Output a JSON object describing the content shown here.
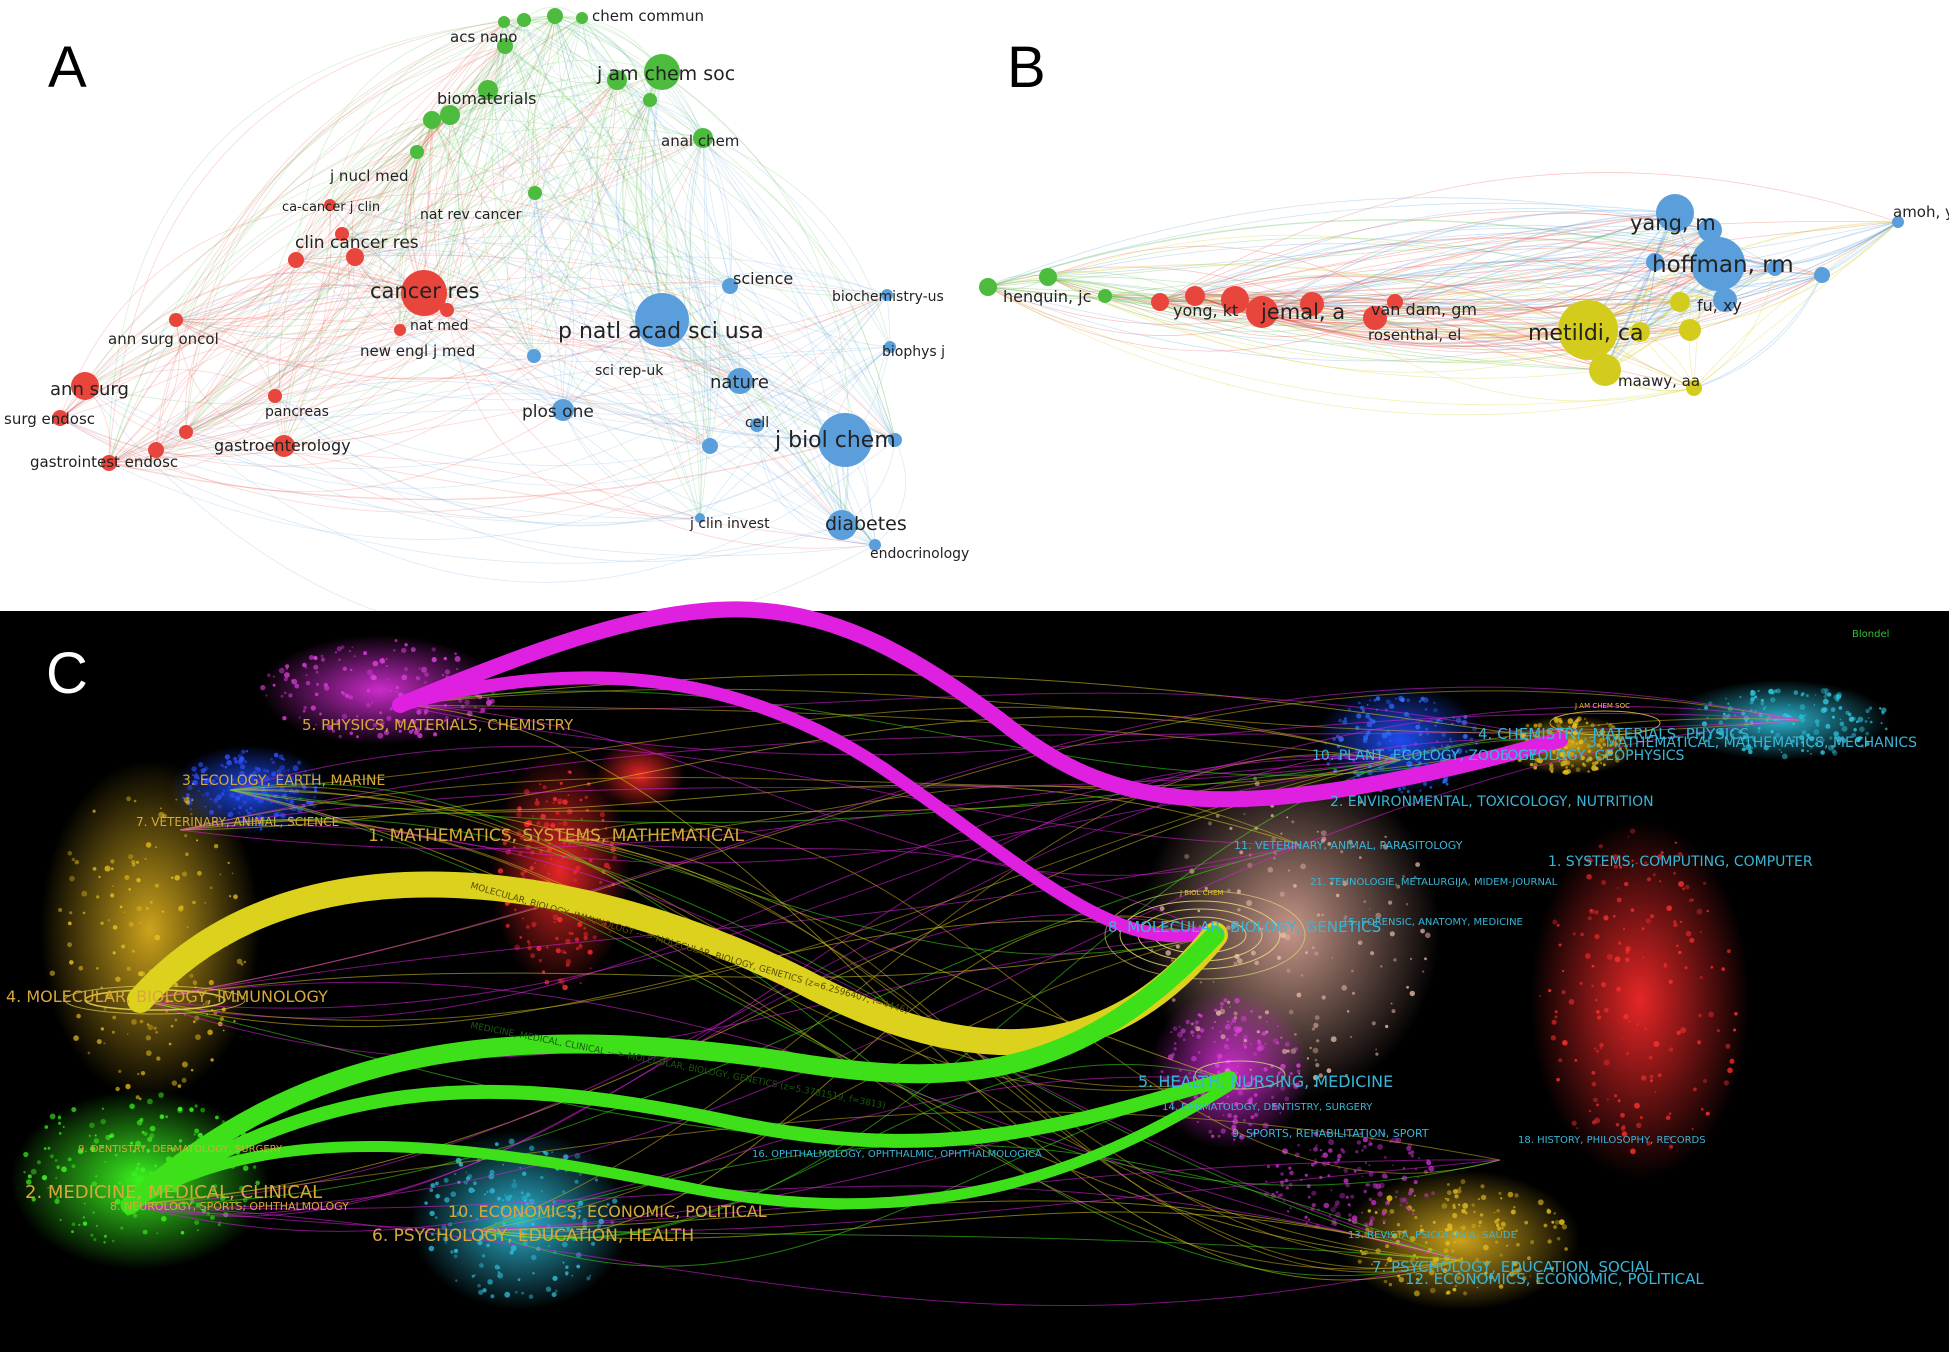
{
  "panels": {
    "A": {
      "letter": "A",
      "colors": {
        "red": "#e8453c",
        "green": "#4cbb3e",
        "blue": "#5a9fdc"
      },
      "nodes": [
        {
          "label": "chem commun",
          "cluster": "green",
          "weight": 1
        },
        {
          "label": "acs nano",
          "cluster": "green",
          "weight": 1
        },
        {
          "label": "j am chem soc",
          "cluster": "green",
          "weight": 3
        },
        {
          "label": "biomaterials",
          "cluster": "green",
          "weight": 2
        },
        {
          "label": "anal chem",
          "cluster": "green",
          "weight": 1
        },
        {
          "label": "j nucl med",
          "cluster": "green",
          "weight": 1
        },
        {
          "label": "ca-cancer j clin",
          "cluster": "red",
          "weight": 1
        },
        {
          "label": "nat rev cancer",
          "cluster": "green",
          "weight": 1
        },
        {
          "label": "clin cancer res",
          "cluster": "red",
          "weight": 2
        },
        {
          "label": "cancer res",
          "cluster": "red",
          "weight": 4
        },
        {
          "label": "nat med",
          "cluster": "red",
          "weight": 1
        },
        {
          "label": "new engl j med",
          "cluster": "red",
          "weight": 1
        },
        {
          "label": "ann surg oncol",
          "cluster": "red",
          "weight": 1
        },
        {
          "label": "ann surg",
          "cluster": "red",
          "weight": 3
        },
        {
          "label": "surg endosc",
          "cluster": "red",
          "weight": 1
        },
        {
          "label": "pancreas",
          "cluster": "red",
          "weight": 1
        },
        {
          "label": "gastroenterology",
          "cluster": "red",
          "weight": 2
        },
        {
          "label": "gastrointest endosc",
          "cluster": "red",
          "weight": 2
        },
        {
          "label": "science",
          "cluster": "blue",
          "weight": 2
        },
        {
          "label": "biochemistry-us",
          "cluster": "blue",
          "weight": 1
        },
        {
          "label": "p natl acad sci usa",
          "cluster": "blue",
          "weight": 4
        },
        {
          "label": "biophys j",
          "cluster": "blue",
          "weight": 1
        },
        {
          "label": "sci rep-uk",
          "cluster": "blue",
          "weight": 1
        },
        {
          "label": "nature",
          "cluster": "blue",
          "weight": 2
        },
        {
          "label": "plos one",
          "cluster": "blue",
          "weight": 2
        },
        {
          "label": "cell",
          "cluster": "blue",
          "weight": 1
        },
        {
          "label": "j biol chem",
          "cluster": "blue",
          "weight": 4
        },
        {
          "label": "diabetes",
          "cluster": "blue",
          "weight": 3
        },
        {
          "label": "j clin invest",
          "cluster": "blue",
          "weight": 1
        },
        {
          "label": "endocrinology",
          "cluster": "blue",
          "weight": 1
        }
      ]
    },
    "B": {
      "letter": "B",
      "colors": {
        "red": "#e8453c",
        "green": "#4cbb3e",
        "blue": "#5a9fdc",
        "yellow": "#d4cc1c"
      },
      "nodes": [
        {
          "label": "yang, m",
          "cluster": "blue",
          "weight": 3
        },
        {
          "label": "amoh, y",
          "cluster": "blue",
          "weight": 1
        },
        {
          "label": "hoffman, rm",
          "cluster": "blue",
          "weight": 4
        },
        {
          "label": "henquin, jc",
          "cluster": "green",
          "weight": 1
        },
        {
          "label": "yong, kt",
          "cluster": "red",
          "weight": 1
        },
        {
          "label": "jemal, a",
          "cluster": "red",
          "weight": 3
        },
        {
          "label": "van dam, gm",
          "cluster": "red",
          "weight": 1
        },
        {
          "label": "rosenthal, el",
          "cluster": "red",
          "weight": 1
        },
        {
          "label": "fu, xy",
          "cluster": "yellow",
          "weight": 1
        },
        {
          "label": "metildi, ca",
          "cluster": "yellow",
          "weight": 4
        },
        {
          "label": "maawy, aa",
          "cluster": "yellow",
          "weight": 1
        }
      ]
    },
    "C": {
      "letter": "C",
      "algorithm_label": "Blondel",
      "colors": {
        "left_label": "#d8a93a",
        "right_label": "#38b6d8",
        "magenta": "#e020e0",
        "yellow": "#dcd21e",
        "green": "#3ee01a"
      },
      "left_clusters": [
        "5. PHYSICS, MATERIALS, CHEMISTRY",
        "3. ECOLOGY, EARTH, MARINE",
        "7. VETERINARY, ANIMAL, SCIENCE",
        "1. MATHEMATICS, SYSTEMS, MATHEMATICAL",
        "4. MOLECULAR, BIOLOGY, IMMUNOLOGY",
        "9. DENTISTRY, DERMATOLOGY, SURGERY",
        "2. MEDICINE, MEDICAL, CLINICAL",
        "8. NEUROLOGY, SPORTS, OPHTHALMOLOGY",
        "10. ECONOMICS, ECONOMIC, POLITICAL",
        "6. PSYCHOLOGY, EDUCATION, HEALTH"
      ],
      "right_clusters": [
        "4. CHEMISTRY, MATERIALS, PHYSICS",
        "3. MATHEMATICAL, MATHEMATICS, MECHANICS",
        "10. PLANT, ECOLOGY, ZOOLOGY",
        "6. GEOLOGY, GEOPHYSICS",
        "2. ENVIRONMENTAL, TOXICOLOGY, NUTRITION",
        "11. VETERINARY, ANIMAL, PARASITOLOGY",
        "1. SYSTEMS, COMPUTING, COMPUTER",
        "21. TEHNOLOGIE, METALURGIJA, MIDEM-JOURNAL",
        "15. FORENSIC, ANATOMY, MEDICINE",
        "8. MOLECULAR, BIOLOGY, GENETICS",
        "5. HEALTH, NURSING, MEDICINE",
        "14. DERMATOLOGY, DENTISTRY, SURGERY",
        "9. SPORTS, REHABILITATION, SPORT",
        "18. HISTORY, PHILOSOPHY, RECORDS",
        "16. OPHTHALMOLOGY, OPHTHALMIC, OPHTHALMOLOGICA",
        "13. REVISTA, PSICOLOGIA, SAUDE",
        "7. PSYCHOLOGY, EDUCATION, SOCIAL",
        "12. ECONOMICS, ECONOMIC, POLITICAL"
      ],
      "flow_labels": [
        "MOLECULAR, BIOLOGY, IMMUNOLOGY ---> MOLECULAR, BIOLOGY, GENETICS (z=6.2596407, f=4446)",
        "MEDICINE, MEDICAL, CLINICAL ---> MOLECULAR, BIOLOGY, GENETICS (z=5.3781519, f=3813)"
      ],
      "overlay_labels": [
        "J AM CHEM SOC",
        "J BIOL CHEM"
      ]
    }
  }
}
